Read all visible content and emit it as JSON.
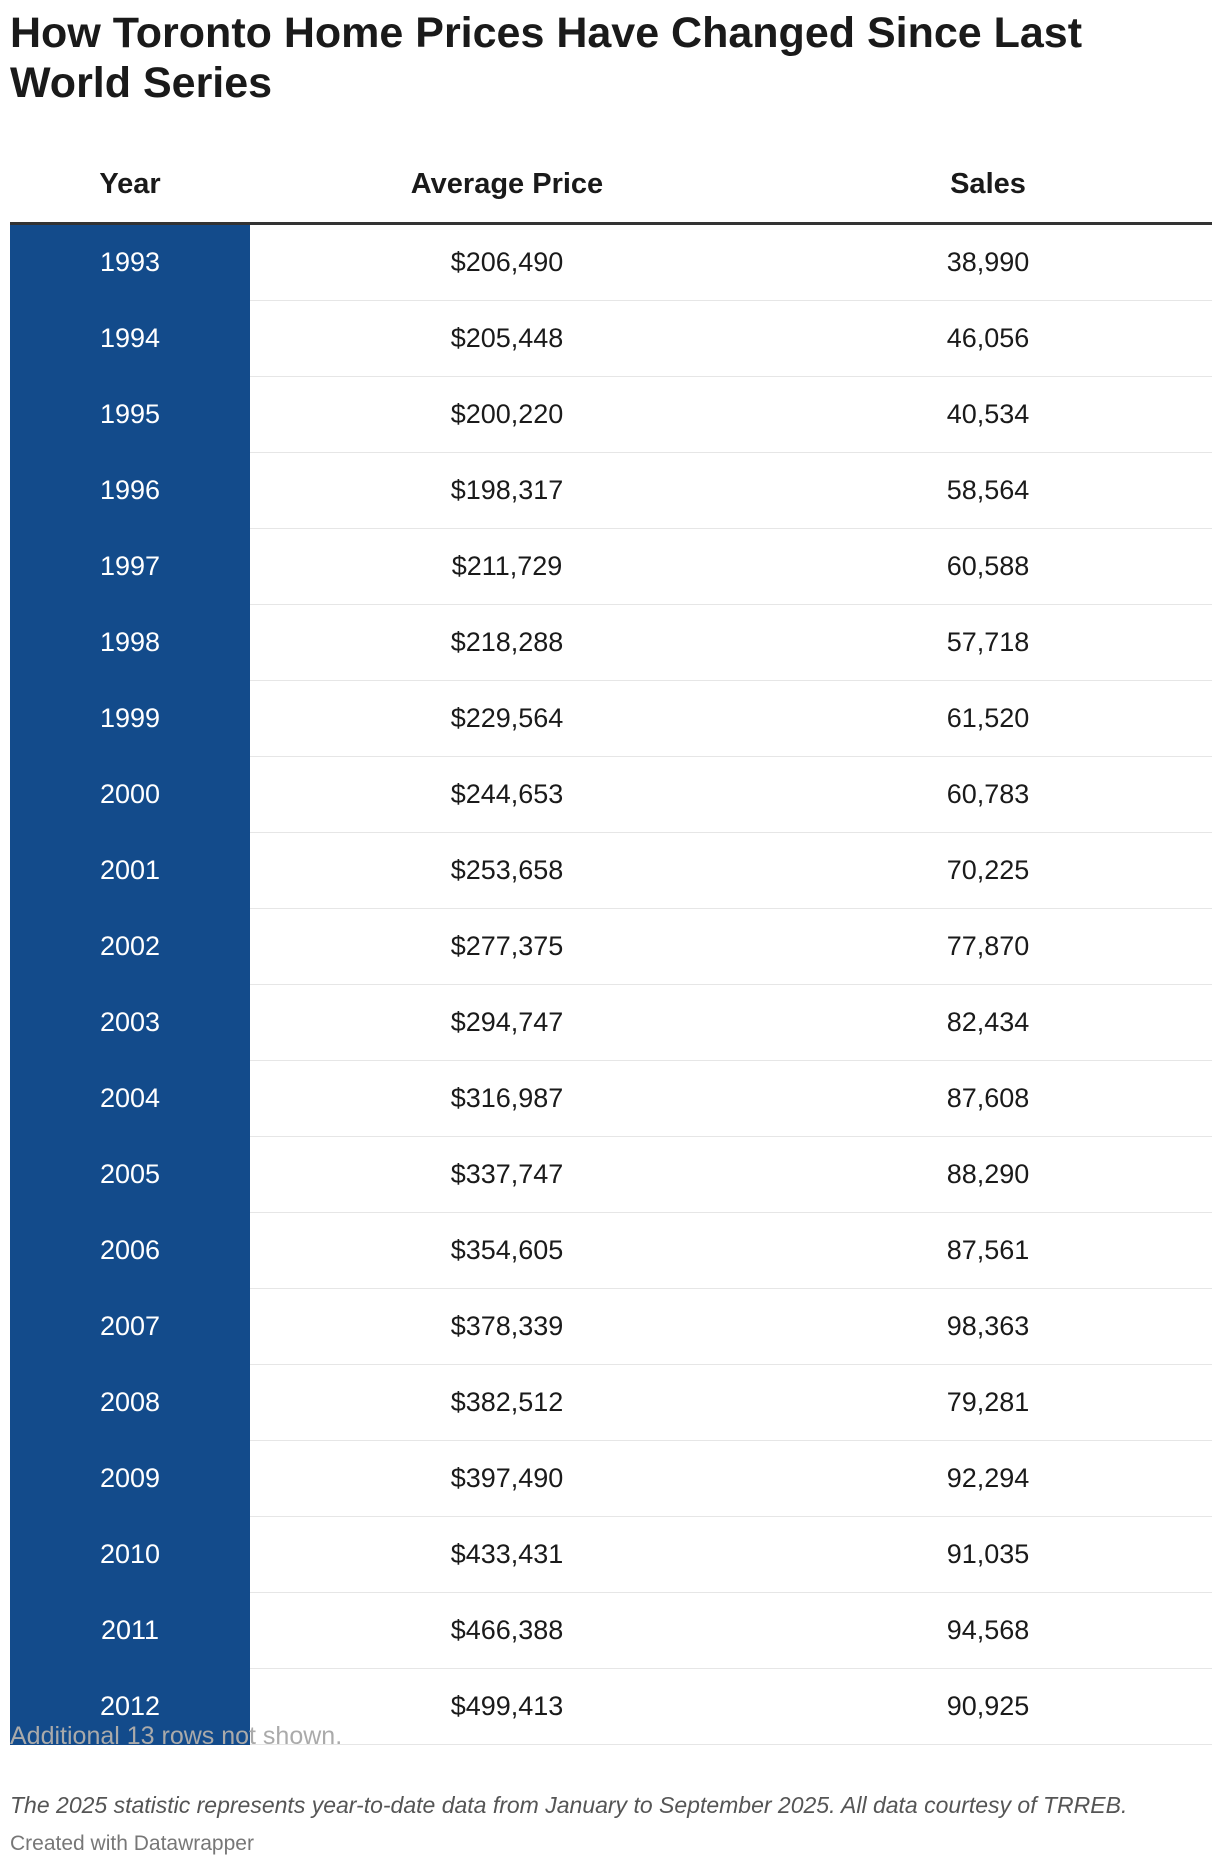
{
  "header": {
    "title": "How Toronto Home Prices Have Changed Since Last World Series"
  },
  "table": {
    "columns": [
      "Year",
      "Average Price",
      "Sales"
    ],
    "rows": [
      [
        "1993",
        "$206,490",
        "38,990"
      ],
      [
        "1994",
        "$205,448",
        "46,056"
      ],
      [
        "1995",
        "$200,220",
        "40,534"
      ],
      [
        "1996",
        "$198,317",
        "58,564"
      ],
      [
        "1997",
        "$211,729",
        "60,588"
      ],
      [
        "1998",
        "$218,288",
        "57,718"
      ],
      [
        "1999",
        "$229,564",
        "61,520"
      ],
      [
        "2000",
        "$244,653",
        "60,783"
      ],
      [
        "2001",
        "$253,658",
        "70,225"
      ],
      [
        "2002",
        "$277,375",
        "77,870"
      ],
      [
        "2003",
        "$294,747",
        "82,434"
      ],
      [
        "2004",
        "$316,987",
        "87,608"
      ],
      [
        "2005",
        "$337,747",
        "88,290"
      ],
      [
        "2006",
        "$354,605",
        "87,561"
      ],
      [
        "2007",
        "$378,339",
        "98,363"
      ],
      [
        "2008",
        "$382,512",
        "79,281"
      ],
      [
        "2009",
        "$397,490",
        "92,294"
      ],
      [
        "2010",
        "$433,431",
        "91,035"
      ],
      [
        "2011",
        "$466,388",
        "94,568"
      ],
      [
        "2012",
        "$499,413",
        "90,925"
      ]
    ]
  },
  "notes": {
    "hidden_rows": "Additional 13 rows not shown.",
    "footnote": "The 2025 statistic represents year-to-date data from January to September 2025. All data courtesy of TRREB.",
    "credit": "Created with Datawrapper"
  }
}
